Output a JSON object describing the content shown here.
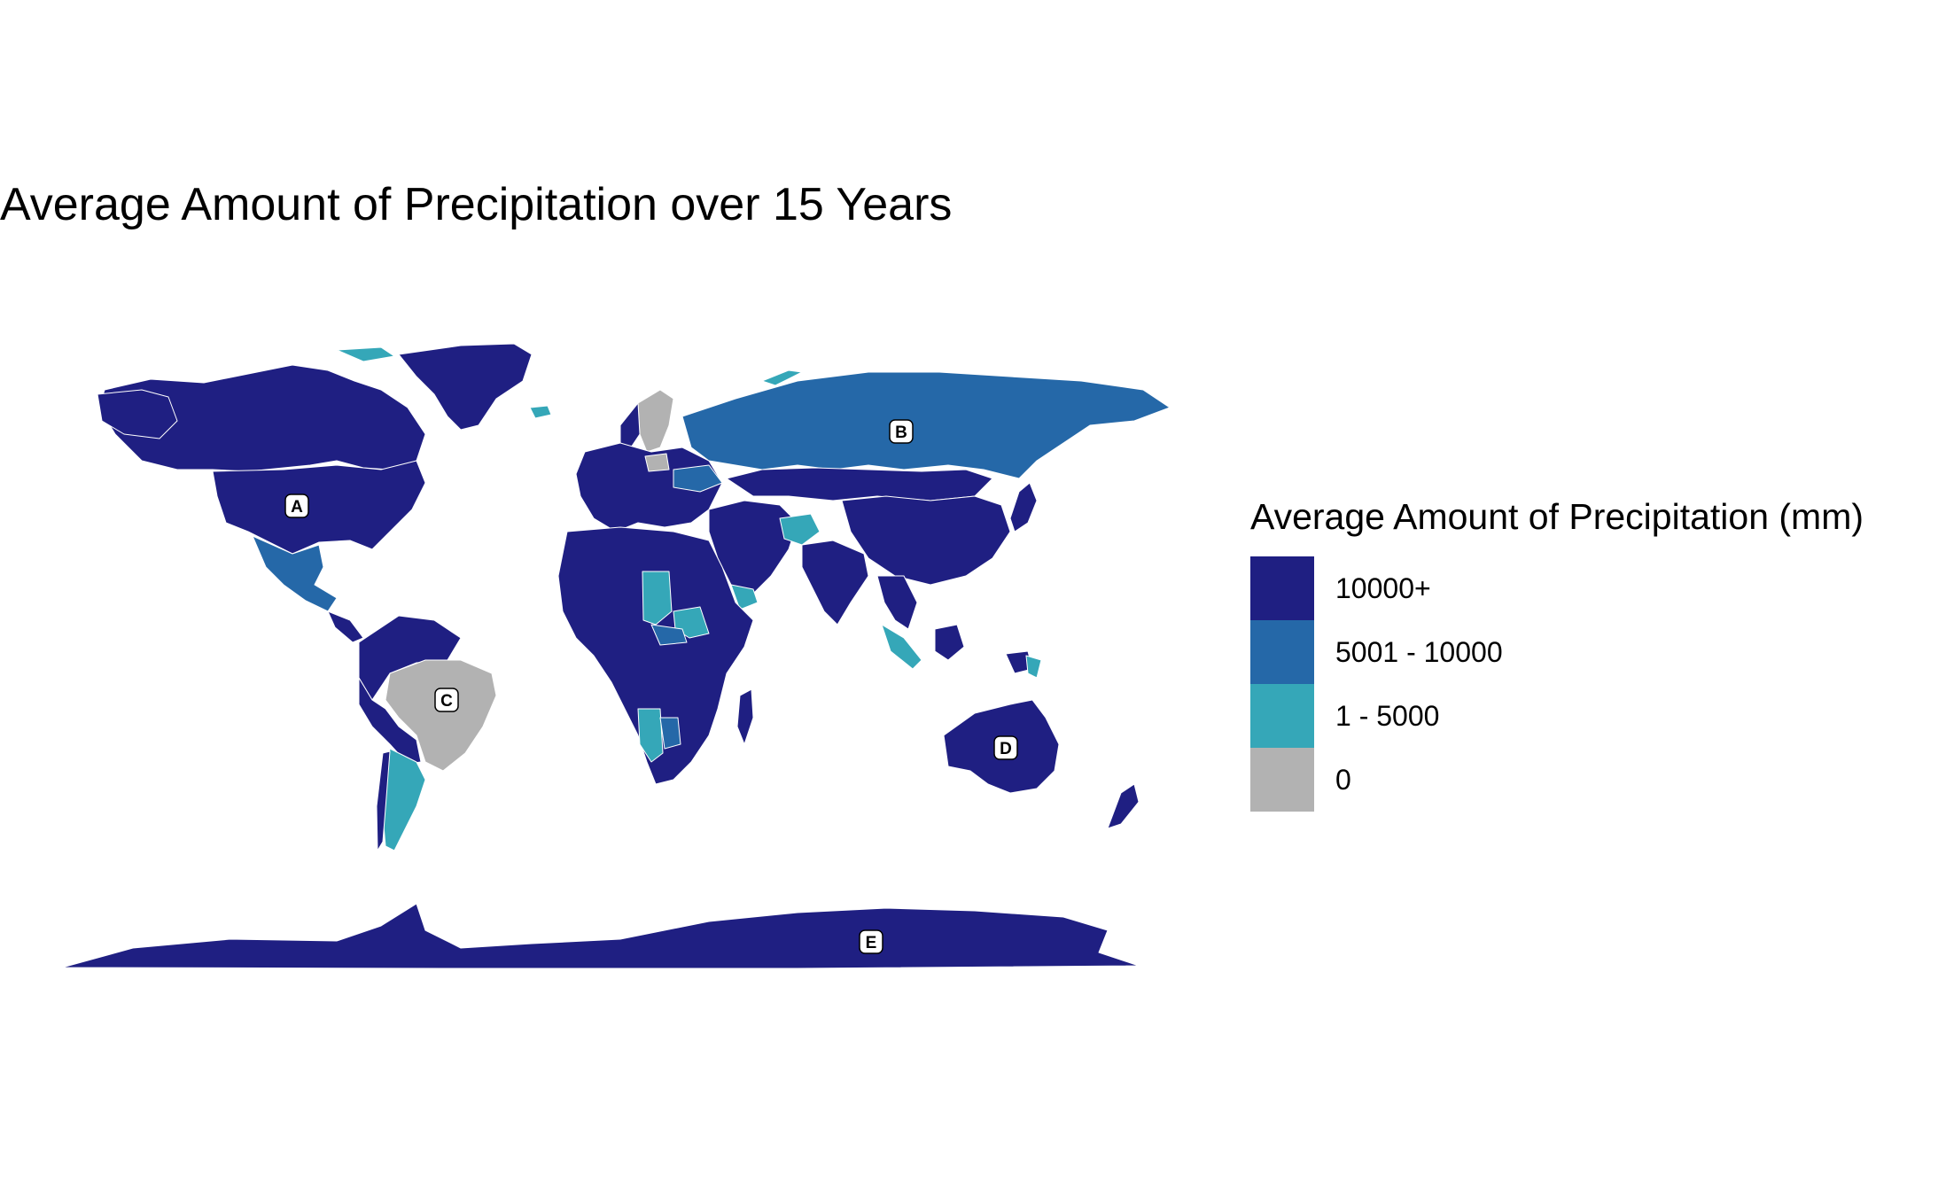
{
  "title": "Average Amount of Precipitation over 15 Years",
  "legend": {
    "title": "Average Amount of Precipitation (mm)",
    "items": [
      {
        "label": "10000+",
        "color": "#1f1f82"
      },
      {
        "label": "5001 - 10000",
        "color": "#2568a8"
      },
      {
        "label": "1 - 5000",
        "color": "#35a7b8"
      },
      {
        "label": "0",
        "color": "#b2b2b2"
      }
    ]
  },
  "markers": [
    {
      "label": "A",
      "region": "United States"
    },
    {
      "label": "B",
      "region": "Russia"
    },
    {
      "label": "C",
      "region": "Brazil"
    },
    {
      "label": "D",
      "region": "Australia"
    },
    {
      "label": "E",
      "region": "Antarctica"
    }
  ],
  "categories": {
    "very_high": "10000+",
    "high": "5001 - 10000",
    "medium": "1 - 5000",
    "none": "0"
  }
}
